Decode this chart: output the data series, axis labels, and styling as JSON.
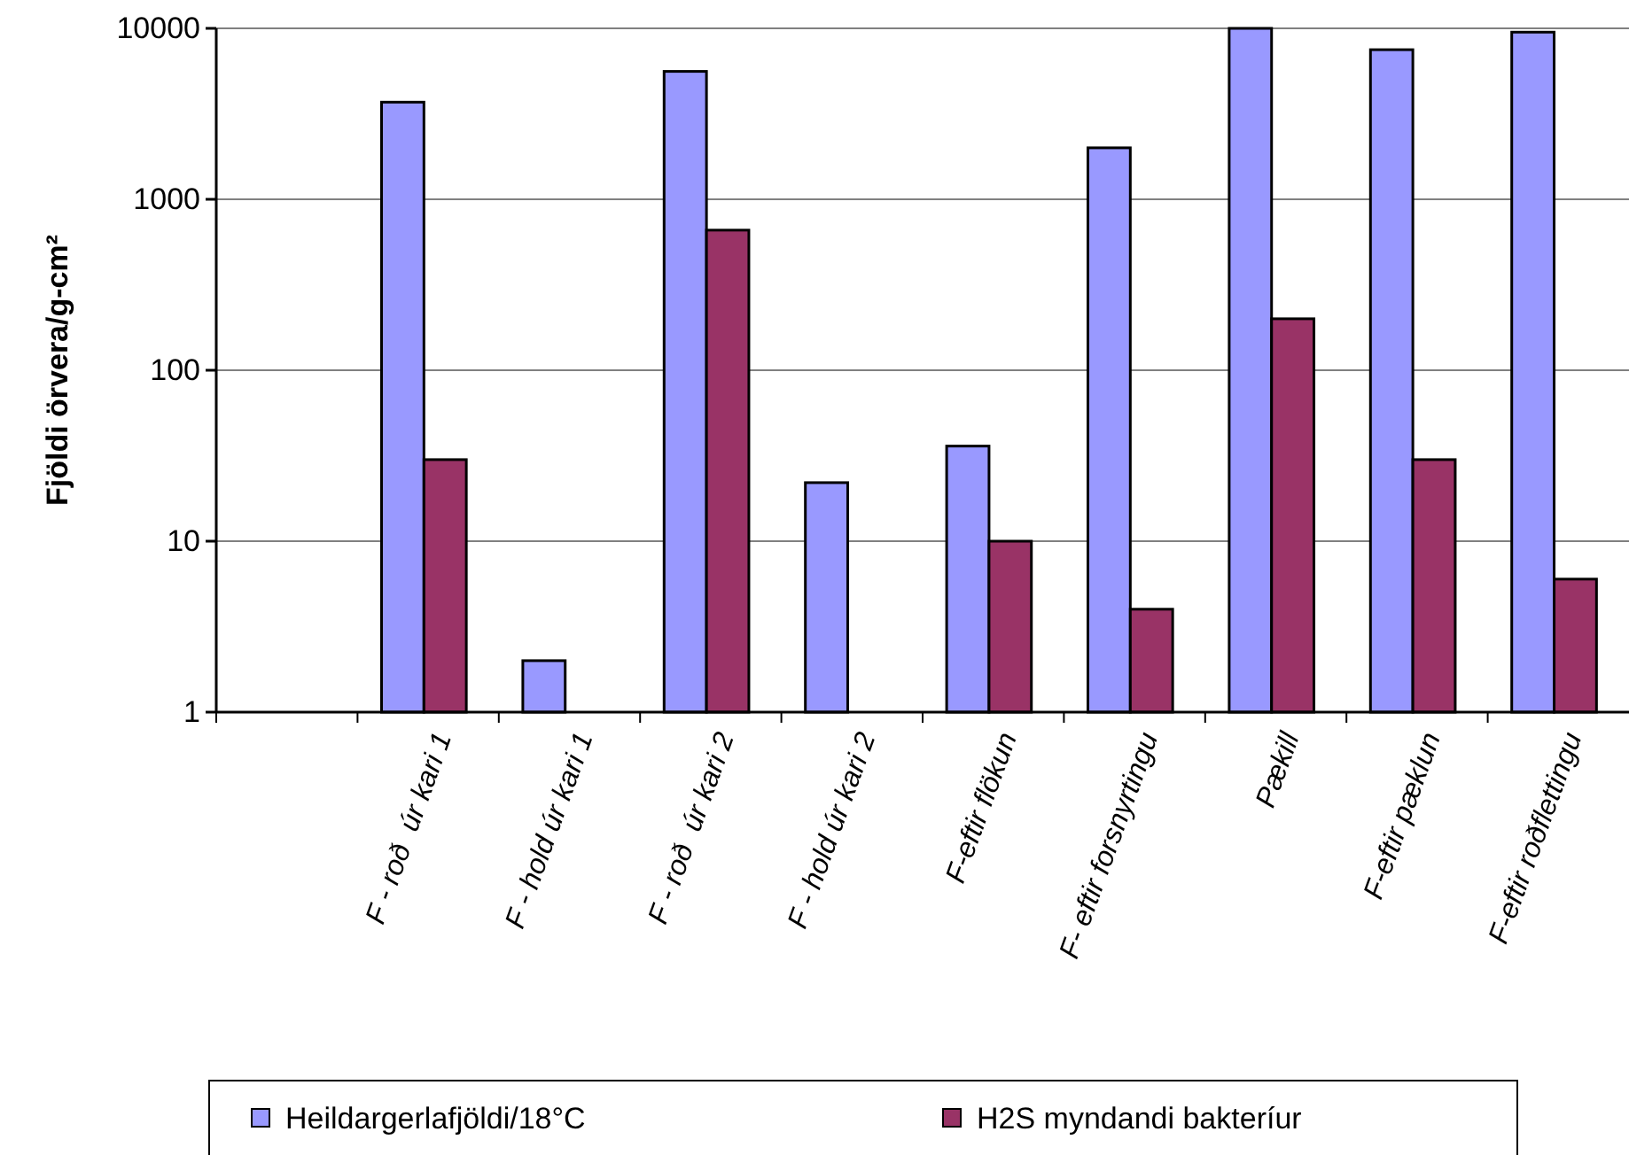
{
  "chart_data": {
    "type": "bar",
    "ylabel": "Fjöldi örvera/g-cm²",
    "categories": [
      null,
      "F - roð  úr kari 1",
      "F - hold úr kari 1",
      "F - roð  úr kari 2",
      "F - hold úr kari 2",
      "F-eftir flökun",
      "F- eftir forsnyrtingu",
      "Pækill",
      "F-eftir pæklun",
      "F-eftir roðflettingu"
    ],
    "series": [
      {
        "name": "Heildargerlafjöldi/18°C",
        "color": "#9999ff",
        "values": [
          null,
          3700,
          2,
          5600,
          22,
          36,
          2000,
          10000,
          7500,
          9500
        ]
      },
      {
        "name": "H2S myndandi bakteríur",
        "color": "#993366",
        "values": [
          null,
          30,
          null,
          660,
          null,
          10,
          4,
          200,
          30,
          6
        ]
      }
    ],
    "log": true,
    "ylim": [
      1,
      10000
    ],
    "yticks": [
      1,
      10,
      100,
      1000,
      10000
    ],
    "grid": "y",
    "legend": "bottom"
  }
}
